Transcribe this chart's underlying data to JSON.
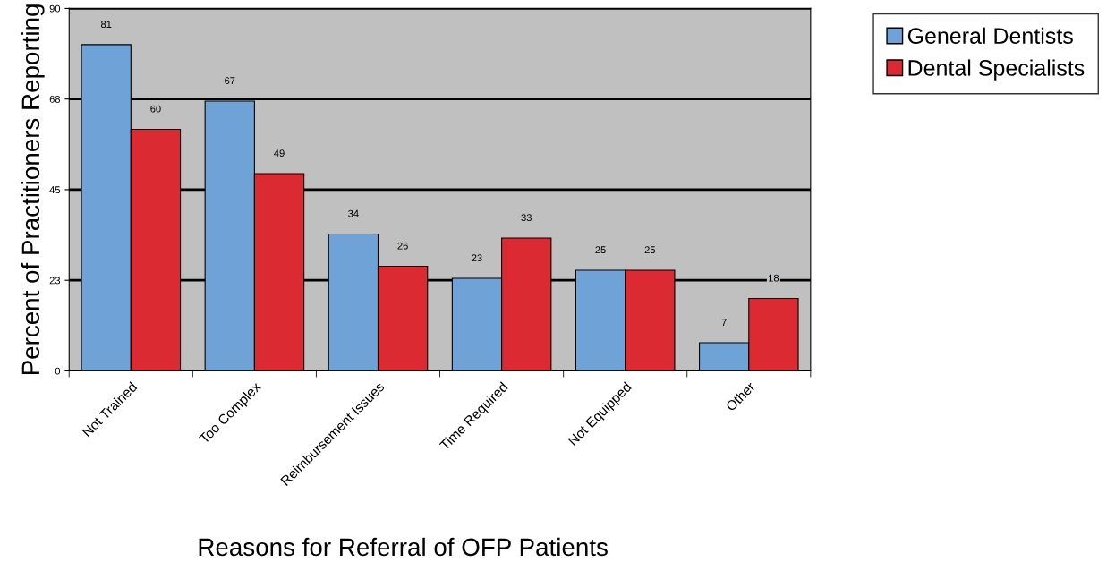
{
  "chart_data": {
    "type": "bar",
    "xlabel": "Reasons for Referral of OFP Patients",
    "ylabel": "Percent of Practitioners Reporting",
    "categories": [
      "Not Trained",
      "Too Complex",
      "Reimbursement Issues",
      "Time Required",
      "Not Equipped",
      "Other"
    ],
    "series": [
      {
        "name": "General Dentists",
        "color": "#6fa3d8",
        "values": [
          81,
          67,
          34,
          23,
          25,
          7
        ]
      },
      {
        "name": "Dental Specialists",
        "color": "#dc2a33",
        "values": [
          60,
          49,
          26,
          33,
          25,
          18
        ]
      }
    ],
    "ylim": [
      0,
      90
    ],
    "yticks": [
      0,
      {
        "value": 22.5,
        "label": "23"
      },
      45,
      {
        "value": 67.5,
        "label": "68"
      },
      90
    ],
    "grid": "y",
    "legend": "top right",
    "data_labels": true
  }
}
